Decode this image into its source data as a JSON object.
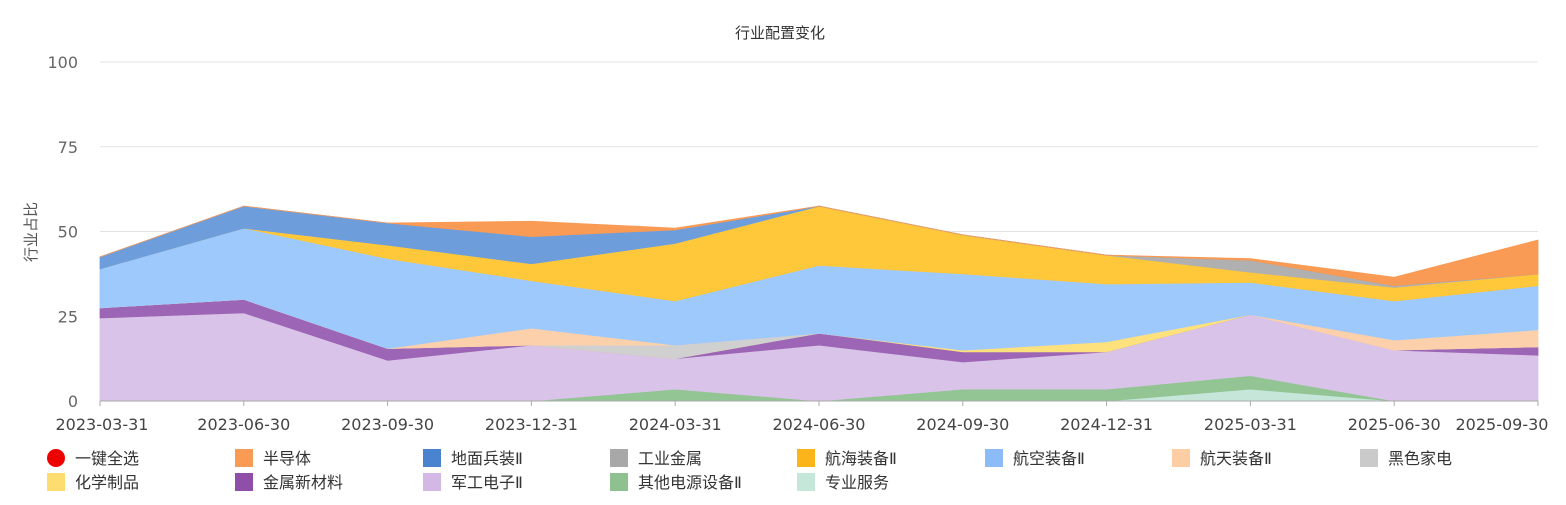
{
  "chart_data": {
    "type": "area",
    "stacked": true,
    "title": "行业配置变化",
    "ylabel": "行业占比",
    "xlabel": "",
    "ylim": [
      0,
      100
    ],
    "yticks": [
      0,
      25,
      50,
      75,
      100
    ],
    "grid": true,
    "legend_position": "bottom",
    "select_all_label": "一键全选",
    "select_all_color": "#ee0000",
    "x": [
      "2023-03-31",
      "2023-06-30",
      "2023-09-30",
      "2023-12-31",
      "2024-03-31",
      "2024-06-30",
      "2024-09-30",
      "2024-12-31",
      "2025-03-31",
      "2025-06-30",
      "2025-09-30"
    ],
    "series": [
      {
        "name": "专业服务",
        "color": "#c6e6da",
        "values": [
          0,
          0,
          0,
          0,
          0,
          0,
          0,
          0,
          3.5,
          0,
          0
        ]
      },
      {
        "name": "其他电源设备Ⅱ",
        "color": "#93c594",
        "values": [
          0,
          0,
          0,
          0,
          3.5,
          0,
          3.5,
          3.5,
          4,
          0,
          0
        ]
      },
      {
        "name": "军工电子Ⅱ",
        "color": "#d9c3e8",
        "values": [
          24.5,
          26,
          12,
          16.5,
          9,
          16.5,
          8,
          11,
          18,
          15,
          13.5
        ]
      },
      {
        "name": "金属新材料",
        "color": "#9d65b5",
        "values": [
          3,
          4,
          3.5,
          0,
          0,
          3.5,
          3,
          0,
          0,
          0,
          2.5
        ]
      },
      {
        "name": "化学制品",
        "color": "#fde17d",
        "values": [
          0,
          0,
          0,
          0,
          0,
          0,
          0.5,
          3,
          0,
          0,
          0
        ]
      },
      {
        "name": "黑色家电",
        "color": "#d0d0d0",
        "values": [
          0,
          0,
          0,
          0,
          4,
          0,
          0,
          0,
          0,
          0,
          0
        ]
      },
      {
        "name": "航天装备Ⅱ",
        "color": "#fcd0ab",
        "values": [
          0,
          0,
          0,
          5,
          0,
          0,
          0,
          0,
          0,
          3,
          5
        ]
      },
      {
        "name": "航空装备Ⅱ",
        "color": "#9dc9fc",
        "values": [
          11.5,
          21,
          26.5,
          14,
          13,
          20,
          22.5,
          17,
          9.5,
          11.5,
          13
        ]
      },
      {
        "name": "航海装备Ⅱ",
        "color": "#ffc73a",
        "values": [
          0,
          0,
          4,
          5,
          17,
          17.5,
          11.5,
          8.5,
          3,
          4,
          3.5
        ]
      },
      {
        "name": "工业金属",
        "color": "#b0b0b0",
        "values": [
          0,
          0,
          0,
          0,
          0,
          0,
          0,
          0,
          3.5,
          0.5,
          0
        ]
      },
      {
        "name": "地面兵装Ⅱ",
        "color": "#6d9edb",
        "values": [
          3.5,
          6.5,
          6.5,
          8,
          4,
          0,
          0,
          0,
          0,
          0,
          0
        ]
      },
      {
        "name": "半导体",
        "color": "#f99a55",
        "values": [
          0,
          0,
          0,
          4.5,
          0.5,
          0,
          0,
          0,
          0.5,
          2.5,
          10
        ]
      }
    ],
    "legend": [
      {
        "name": "半导体",
        "color": "#f99a55"
      },
      {
        "name": "地面兵装Ⅱ",
        "color": "#4a84d0"
      },
      {
        "name": "工业金属",
        "color": "#a8a8a8"
      },
      {
        "name": "航海装备Ⅱ",
        "color": "#fbb419"
      },
      {
        "name": "航空装备Ⅱ",
        "color": "#8bbcf8"
      },
      {
        "name": "航天装备Ⅱ",
        "color": "#fdcda4"
      },
      {
        "name": "黑色家电",
        "color": "#cacaca"
      },
      {
        "name": "化学制品",
        "color": "#fddc70"
      },
      {
        "name": "金属新材料",
        "color": "#8f4fa8"
      },
      {
        "name": "军工电子Ⅱ",
        "color": "#d3b8e6"
      },
      {
        "name": "其他电源设备Ⅱ",
        "color": "#8fc190"
      },
      {
        "name": "专业服务",
        "color": "#c4e7d9"
      }
    ]
  }
}
